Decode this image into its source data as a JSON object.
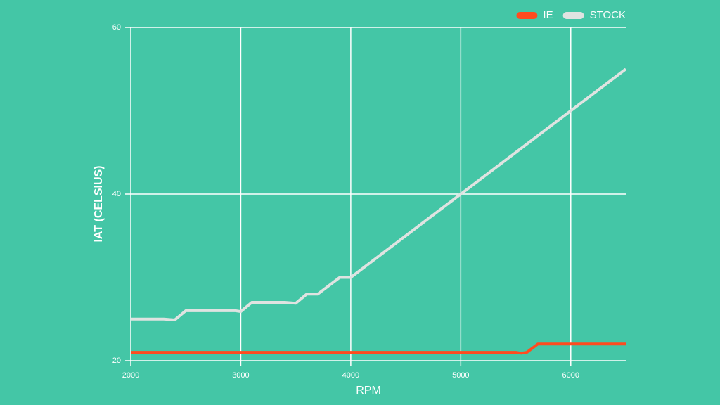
{
  "chart_data": {
    "type": "line",
    "x_label": "RPM",
    "y_label": "IAT (CELSIUS)",
    "x": [
      2000,
      2300,
      2400,
      2500,
      2600,
      2950,
      3000,
      3100,
      3400,
      3500,
      3600,
      3700,
      3900,
      4000,
      5500,
      5550,
      5600,
      5700,
      6000,
      6500
    ],
    "series": [
      {
        "name": "IE",
        "color": "#ff4b1f",
        "values": [
          21,
          21,
          21,
          21,
          21,
          21,
          21,
          21,
          21,
          21,
          21,
          21,
          21,
          21,
          21,
          20.9,
          21,
          22,
          22,
          22
        ]
      },
      {
        "name": "STOCK",
        "color": "#dfe3e1",
        "values": [
          25,
          25,
          24.9,
          26,
          26,
          26,
          25.9,
          27,
          27,
          26.9,
          28,
          28,
          30,
          30,
          45,
          45.5,
          46,
          47,
          50,
          55
        ]
      }
    ],
    "xlim": [
      2000,
      6500
    ],
    "ylim": [
      20,
      60
    ],
    "xticks": [
      2000,
      3000,
      4000,
      5000,
      6000
    ],
    "yticks": [
      20,
      40,
      60
    ],
    "grid": true,
    "legend": "top-right"
  }
}
